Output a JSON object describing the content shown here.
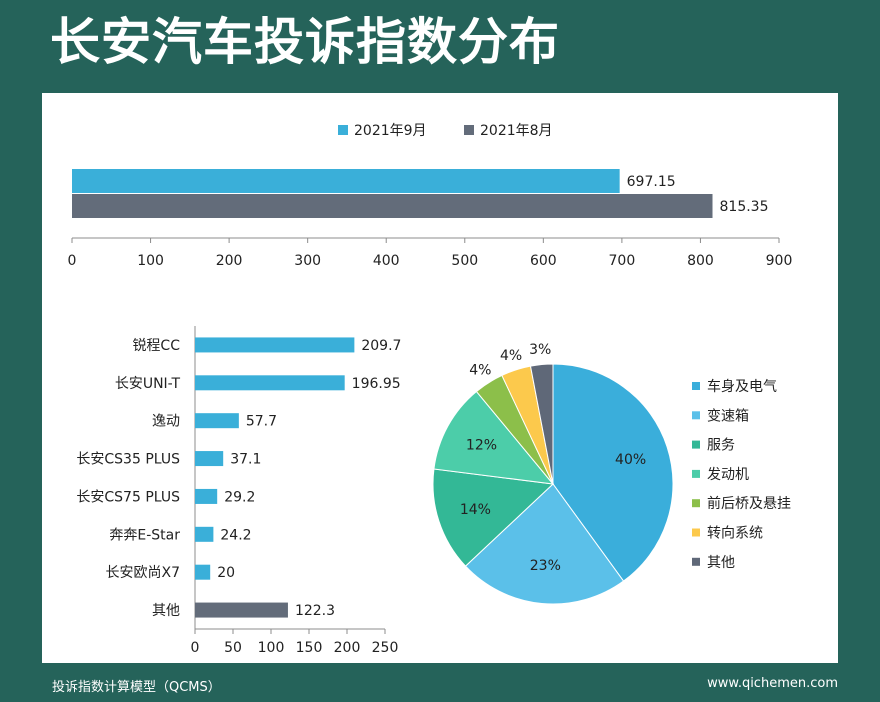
{
  "page": {
    "title": "长安汽车投诉指数分布",
    "footer_left": "投诉指数计算模型（QCMS）",
    "footer_right": "www.qichemen.com"
  },
  "colors": {
    "background": "#25635a",
    "panel": "#ffffff",
    "sep_series": "#3aafd9",
    "aug_series": "#636c7a"
  },
  "chart_data": [
    {
      "type": "bar",
      "orientation": "horizontal",
      "legend_position": "top",
      "series": [
        {
          "name": "2021年9月",
          "values": [
            697.15
          ],
          "color": "#3aafd9"
        },
        {
          "name": "2021年8月",
          "values": [
            815.35
          ],
          "color": "#636c7a"
        }
      ],
      "xlim": [
        0,
        900
      ],
      "xticks": [
        "0",
        "100",
        "200",
        "300",
        "400",
        "500",
        "600",
        "700",
        "800",
        "900"
      ],
      "data_labels": [
        "697.15",
        "815.35"
      ]
    },
    {
      "type": "bar",
      "orientation": "horizontal",
      "categories": [
        "锐程CC",
        "长安UNI-T",
        "逸动",
        "长安CS35 PLUS",
        "长安CS75 PLUS",
        "奔奔E-Star",
        "长安欧尚X7",
        "其他"
      ],
      "values": [
        209.7,
        196.95,
        57.7,
        37.1,
        29.2,
        24.2,
        20,
        122.3
      ],
      "data_labels": [
        "209.7",
        "196.95",
        "57.7",
        "37.1",
        "29.2",
        "24.2",
        "20",
        "122.3"
      ],
      "colors": [
        "#3aafd9",
        "#3aafd9",
        "#3aafd9",
        "#3aafd9",
        "#3aafd9",
        "#3aafd9",
        "#3aafd9",
        "#636c7a"
      ],
      "xlim": [
        0,
        250
      ],
      "xticks": [
        "0",
        "50",
        "100",
        "150",
        "200",
        "250"
      ]
    },
    {
      "type": "pie",
      "legend_position": "right",
      "labels": [
        "车身及电气",
        "变速箱",
        "服务",
        "发动机",
        "前后桥及悬挂",
        "转向系统",
        "其他"
      ],
      "values": [
        40,
        23,
        14,
        12,
        4,
        4,
        3
      ],
      "value_labels": [
        "40%",
        "23%",
        "14%",
        "12%",
        "4%",
        "4%",
        "3%"
      ],
      "colors": [
        "#3aaedb",
        "#5bc0e9",
        "#33b896",
        "#4ccda9",
        "#8cbf4a",
        "#fcc94c",
        "#5f6878"
      ]
    }
  ]
}
